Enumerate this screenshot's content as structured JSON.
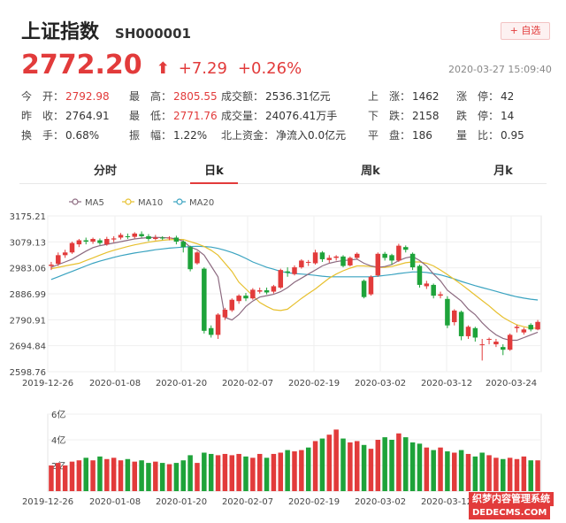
{
  "header": {
    "title": "上证指数",
    "code": "SH000001",
    "fav_label": "+ 自选"
  },
  "quote": {
    "price": "2772.20",
    "arrow": "⬆",
    "change": "+7.29",
    "change_pct": "+0.26%",
    "timestamp": "2020-03-27 15:09:40"
  },
  "stats": [
    [
      {
        "label": "今　开：",
        "value": "2792.98",
        "color": "red"
      },
      {
        "label": "最　高：",
        "value": "2805.55",
        "color": "red"
      },
      {
        "label": "成交额：",
        "value": "2536.31亿元",
        "color": "dark"
      },
      {
        "label": "上　涨：",
        "value": "1462",
        "color": "dark"
      },
      {
        "label": "涨　停：",
        "value": "42",
        "color": "dark"
      }
    ],
    [
      {
        "label": "昨　收：",
        "value": "2764.91",
        "color": "dark"
      },
      {
        "label": "最　低：",
        "value": "2771.76",
        "color": "red"
      },
      {
        "label": "成交量：",
        "value": "24076.41万手",
        "color": "dark"
      },
      {
        "label": "下　跌：",
        "value": "2158",
        "color": "dark"
      },
      {
        "label": "跌　停：",
        "value": "14",
        "color": "dark"
      }
    ],
    [
      {
        "label": "换　手：",
        "value": "0.68%",
        "color": "dark"
      },
      {
        "label": "振　幅：",
        "value": "1.22%",
        "color": "dark"
      },
      {
        "label": "北上资金：",
        "value": "净流入0.0亿元",
        "color": "dark"
      },
      {
        "label": "平　盘：",
        "value": "186",
        "color": "dark"
      },
      {
        "label": "量　比：",
        "value": "0.95",
        "color": "dark"
      }
    ]
  ],
  "tabs": [
    "分时",
    "日k",
    "周k",
    "月k"
  ],
  "active_tab": "日k",
  "watermark": {
    "line1": "织梦内容管理系统",
    "line2": "DEDECMS.COM"
  },
  "colors": {
    "up": "#e23b3b",
    "down": "#1ea33a",
    "ma5": "#8c6a80",
    "ma10": "#e7c02e",
    "ma20": "#3aa3c0"
  },
  "chart_data": [
    {
      "type": "candlestick",
      "legend": [
        "MA5",
        "MA10",
        "MA20"
      ],
      "y_ticks": [
        "3175.21",
        "3079.13",
        "2983.06",
        "2886.99",
        "2790.91",
        "2694.84",
        "2598.76"
      ],
      "ylim": [
        2598.76,
        3175.21
      ],
      "x_ticks": [
        "2019-12-26",
        "2020-01-08",
        "2020-01-20",
        "2020-02-07",
        "2020-02-19",
        "2020-03-02",
        "2020-03-12",
        "2020-03-24"
      ],
      "grid": true,
      "candles": [
        [
          2990,
          2995,
          2975,
          3005
        ],
        [
          2998,
          3030,
          2990,
          3040
        ],
        [
          3030,
          3040,
          3020,
          3050
        ],
        [
          3040,
          3075,
          3035,
          3080
        ],
        [
          3070,
          3085,
          3060,
          3090
        ],
        [
          3085,
          3080,
          3070,
          3095
        ],
        [
          3080,
          3090,
          3072,
          3095
        ],
        [
          3085,
          3075,
          3068,
          3092
        ],
        [
          3070,
          3090,
          3065,
          3098
        ],
        [
          3088,
          3092,
          3078,
          3100
        ],
        [
          3095,
          3105,
          3088,
          3112
        ],
        [
          3100,
          3098,
          3090,
          3110
        ],
        [
          3098,
          3110,
          3092,
          3115
        ],
        [
          3108,
          3100,
          3095,
          3118
        ],
        [
          3100,
          3090,
          3082,
          3108
        ],
        [
          3090,
          3095,
          3085,
          3105
        ],
        [
          3095,
          3092,
          3086,
          3100
        ],
        [
          3092,
          3095,
          3085,
          3100
        ],
        [
          3095,
          3080,
          3070,
          3102
        ],
        [
          3080,
          3060,
          3040,
          3085
        ],
        [
          3060,
          2978,
          2970,
          3065
        ],
        [
          3000,
          3040,
          2995,
          3045
        ],
        [
          2980,
          2750,
          2740,
          2985
        ],
        [
          2760,
          2735,
          2725,
          2770
        ],
        [
          2735,
          2810,
          2720,
          2815
        ],
        [
          2800,
          2828,
          2790,
          2835
        ],
        [
          2826,
          2865,
          2820,
          2870
        ],
        [
          2860,
          2880,
          2850,
          2885
        ],
        [
          2880,
          2870,
          2860,
          2890
        ],
        [
          2870,
          2902,
          2865,
          2908
        ],
        [
          2895,
          2900,
          2888,
          2910
        ],
        [
          2900,
          2892,
          2885,
          2910
        ],
        [
          2895,
          2915,
          2888,
          2920
        ],
        [
          2910,
          2975,
          2905,
          2980
        ],
        [
          2970,
          2965,
          2950,
          2985
        ],
        [
          2960,
          2985,
          2955,
          2992
        ],
        [
          2985,
          3010,
          2980,
          3015
        ],
        [
          3005,
          3005,
          2990,
          3012
        ],
        [
          3000,
          3040,
          2995,
          3050
        ],
        [
          3040,
          3015,
          3005,
          3045
        ],
        [
          3012,
          3020,
          3002,
          3030
        ],
        [
          3020,
          3025,
          3010,
          3030
        ],
        [
          3025,
          2990,
          2985,
          3030
        ],
        [
          2992,
          3020,
          2988,
          3025
        ],
        [
          3020,
          3035,
          3015,
          3040
        ],
        [
          2935,
          2875,
          2870,
          2940
        ],
        [
          2885,
          2950,
          2880,
          2955
        ],
        [
          2955,
          3035,
          2950,
          3040
        ],
        [
          3035,
          3020,
          3010,
          3042
        ],
        [
          3030,
          3010,
          2995,
          3035
        ],
        [
          3010,
          3065,
          3005,
          3072
        ],
        [
          3060,
          3050,
          3040,
          3066
        ],
        [
          3035,
          2985,
          2975,
          3040
        ],
        [
          2990,
          2920,
          2910,
          2995
        ],
        [
          2915,
          2925,
          2905,
          2935
        ],
        [
          2920,
          2880,
          2870,
          2925
        ],
        [
          2880,
          2885,
          2870,
          2895
        ],
        [
          2868,
          2770,
          2760,
          2878
        ],
        [
          2782,
          2825,
          2770,
          2830
        ],
        [
          2820,
          2730,
          2715,
          2825
        ],
        [
          2730,
          2765,
          2720,
          2770
        ],
        [
          2760,
          2725,
          2710,
          2765
        ],
        [
          2700,
          2700,
          2640,
          2720
        ],
        [
          2720,
          2720,
          2700,
          2725
        ],
        [
          2700,
          2710,
          2690,
          2720
        ],
        [
          2690,
          2680,
          2660,
          2700
        ],
        [
          2680,
          2735,
          2676,
          2740
        ],
        [
          2760,
          2765,
          2744,
          2772
        ],
        [
          2744,
          2755,
          2736,
          2762
        ],
        [
          2772,
          2755,
          2748,
          2778
        ],
        [
          2755,
          2783,
          2752,
          2790
        ]
      ],
      "ma5": [
        2985,
        2995,
        3005,
        3015,
        3030,
        3045,
        3058,
        3065,
        3070,
        3075,
        3080,
        3085,
        3090,
        3093,
        3095,
        3096,
        3095,
        3094,
        3090,
        3082,
        3060,
        3050,
        3030,
        2990,
        2950,
        2800,
        2790,
        2810,
        2840,
        2860,
        2875,
        2880,
        2885,
        2895,
        2910,
        2930,
        2945,
        2960,
        2975,
        2990,
        3000,
        3006,
        3010,
        3012,
        3015,
        3000,
        2990,
        2985,
        2988,
        2995,
        3010,
        3020,
        3025,
        3010,
        2990,
        2960,
        2935,
        2900,
        2880,
        2860,
        2830,
        2810,
        2780,
        2755,
        2735,
        2722,
        2715,
        2715,
        2725,
        2735,
        2745
      ],
      "ma10": [
        2980,
        2985,
        2990,
        2995,
        3000,
        3010,
        3020,
        3030,
        3040,
        3048,
        3055,
        3062,
        3068,
        3073,
        3078,
        3082,
        3085,
        3087,
        3088,
        3088,
        3080,
        3072,
        3062,
        3048,
        3030,
        3000,
        2970,
        2930,
        2905,
        2880,
        2855,
        2840,
        2828,
        2825,
        2830,
        2850,
        2870,
        2888,
        2905,
        2925,
        2945,
        2960,
        2972,
        2982,
        2990,
        2990,
        2988,
        2985,
        2985,
        2988,
        2995,
        3002,
        3005,
        3005,
        3000,
        2990,
        2975,
        2958,
        2940,
        2922,
        2902,
        2882,
        2862,
        2842,
        2820,
        2800,
        2785,
        2772,
        2765,
        2760,
        2760
      ],
      "ma20": [
        2940,
        2950,
        2960,
        2970,
        2980,
        2990,
        3000,
        3008,
        3015,
        3022,
        3028,
        3033,
        3038,
        3042,
        3046,
        3050,
        3053,
        3056,
        3058,
        3060,
        3062,
        3063,
        3062,
        3060,
        3055,
        3048,
        3040,
        3030,
        3018,
        3005,
        2995,
        2985,
        2978,
        2970,
        2965,
        2962,
        2960,
        2958,
        2955,
        2952,
        2950,
        2950,
        2950,
        2950,
        2950,
        2950,
        2950,
        2952,
        2955,
        2958,
        2962,
        2965,
        2968,
        2968,
        2966,
        2962,
        2957,
        2950,
        2942,
        2933,
        2925,
        2917,
        2910,
        2903,
        2896,
        2889,
        2882,
        2876,
        2871,
        2867,
        2864
      ]
    },
    {
      "type": "bar",
      "ylabel_ticks": [
        "6亿",
        "4亿",
        "2亿"
      ],
      "ylim": [
        0,
        6
      ],
      "x_ticks": [
        "2019-12-26",
        "2020-01-08",
        "2020-01-20",
        "2020-02-07",
        "2020-02-19",
        "2020-03-02",
        "2020-03-12"
      ],
      "volumes": [
        2.0,
        2.2,
        2.0,
        2.3,
        2.4,
        2.6,
        2.4,
        2.7,
        2.5,
        2.6,
        2.4,
        2.5,
        2.3,
        2.4,
        2.2,
        2.3,
        2.2,
        2.1,
        2.2,
        2.4,
        2.8,
        2.2,
        3.0,
        2.9,
        2.8,
        2.9,
        2.8,
        2.9,
        2.7,
        2.6,
        2.9,
        2.6,
        2.9,
        3.0,
        3.2,
        3.1,
        3.2,
        3.4,
        3.9,
        4.1,
        4.4,
        4.8,
        4.1,
        3.8,
        3.9,
        3.6,
        3.3,
        4.0,
        4.2,
        4.0,
        4.5,
        4.2,
        3.8,
        3.7,
        3.4,
        3.2,
        3.4,
        3.1,
        3.0,
        3.2,
        2.9,
        2.7,
        3.0,
        2.8,
        2.6,
        2.5,
        2.6,
        2.5,
        2.7,
        2.4,
        2.4
      ],
      "vol_up": [
        true,
        true,
        true,
        true,
        true,
        false,
        true,
        false,
        true,
        true,
        true,
        false,
        true,
        false,
        false,
        true,
        false,
        true,
        false,
        false,
        false,
        true,
        false,
        false,
        true,
        true,
        true,
        true,
        false,
        true,
        true,
        false,
        true,
        true,
        false,
        true,
        true,
        false,
        true,
        false,
        true,
        true,
        false,
        true,
        true,
        false,
        true,
        true,
        false,
        false,
        true,
        false,
        false,
        false,
        true,
        false,
        true,
        false,
        true,
        false,
        true,
        false,
        false,
        true,
        true,
        false,
        true,
        true,
        true,
        false,
        true
      ]
    }
  ]
}
